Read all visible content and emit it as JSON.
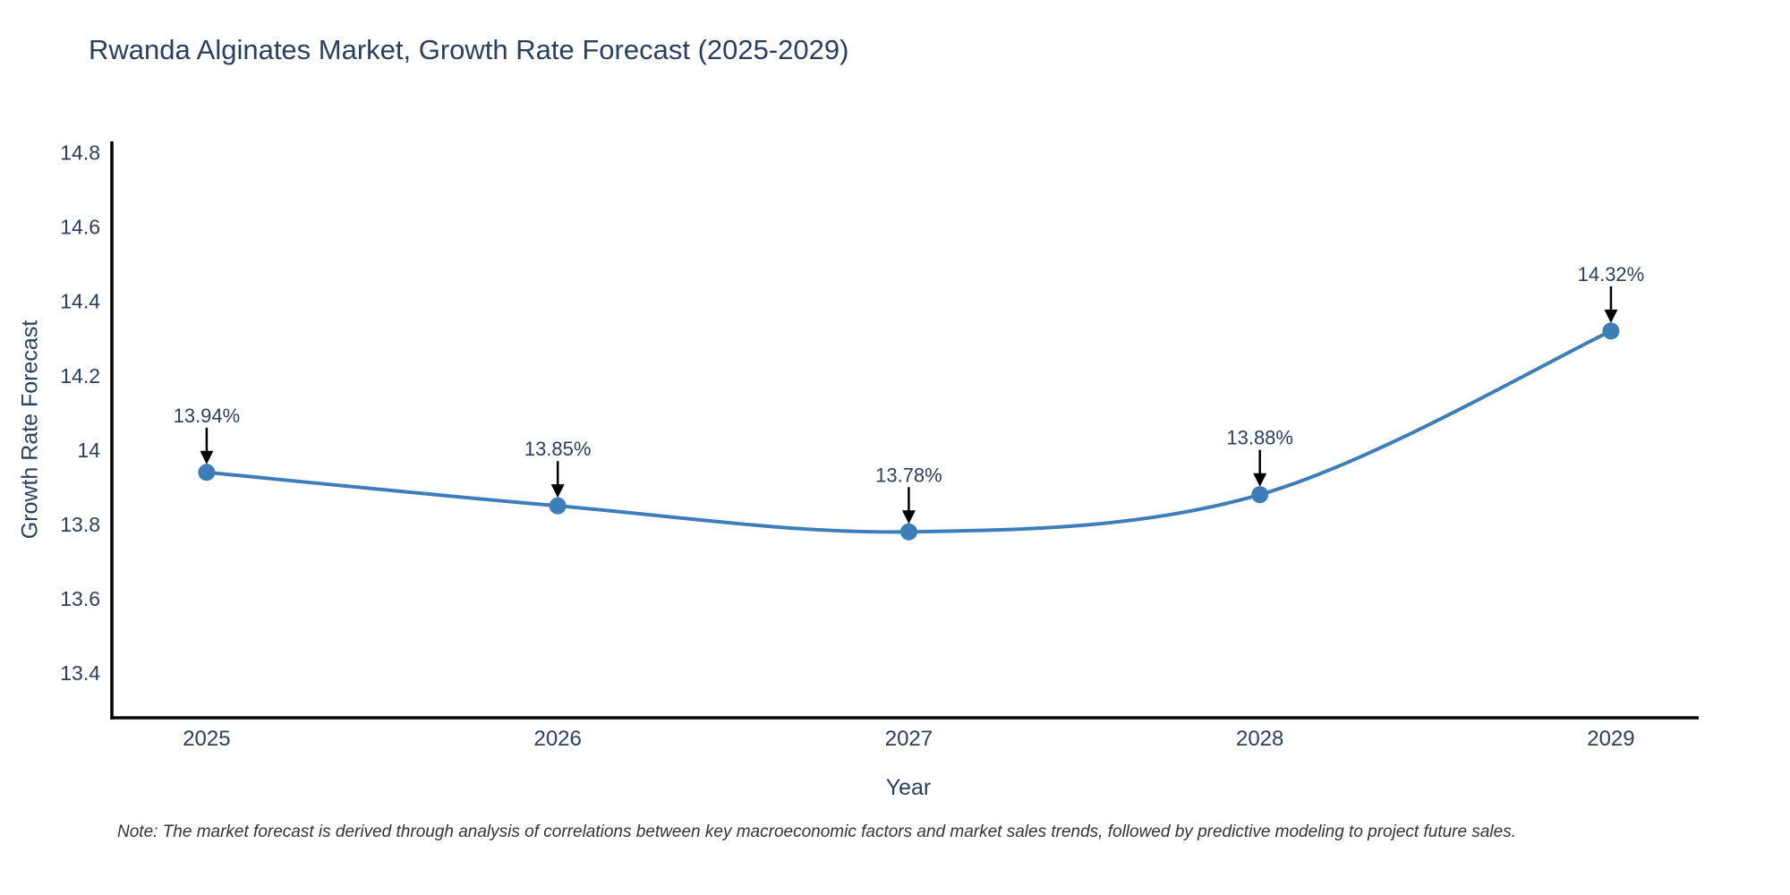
{
  "title": "Rwanda Alginates Market, Growth Rate Forecast (2025-2029)",
  "note": "Note: The market forecast is derived through analysis of correlations between key macroeconomic factors and market sales trends, followed by predictive modeling to project future sales.",
  "chart_data": {
    "type": "line",
    "title": "Rwanda Alginates Market, Growth Rate Forecast (2025-2029)",
    "xlabel": "Year",
    "ylabel": "Growth Rate Forecast",
    "categories": [
      "2025",
      "2026",
      "2027",
      "2028",
      "2029"
    ],
    "x": [
      2025,
      2026,
      2027,
      2028,
      2029
    ],
    "series": [
      {
        "name": "Growth Rate Forecast",
        "values": [
          13.94,
          13.85,
          13.78,
          13.88,
          14.32
        ]
      }
    ],
    "point_labels": [
      "13.94%",
      "13.85%",
      "13.78%",
      "13.88%",
      "14.32%"
    ],
    "y_ticks": [
      "13.4",
      "13.6",
      "13.8",
      "14",
      "14.2",
      "14.4",
      "14.6",
      "14.8"
    ],
    "y_tick_values": [
      13.4,
      13.6,
      13.8,
      14.0,
      14.2,
      14.4,
      14.6,
      14.8
    ],
    "ylim": [
      13.28,
      14.83
    ],
    "xlim": [
      2024.73,
      2029.25
    ],
    "grid": false,
    "legend": "none",
    "annotation_style": "down-arrow",
    "colors": {
      "line": "#3d7eb8",
      "marker": "#3d7eb8",
      "axis": "#000000",
      "text": "#2a3f5f",
      "annotation": "#2a3f5f",
      "arrow": "#000000",
      "note": "#333333"
    }
  }
}
